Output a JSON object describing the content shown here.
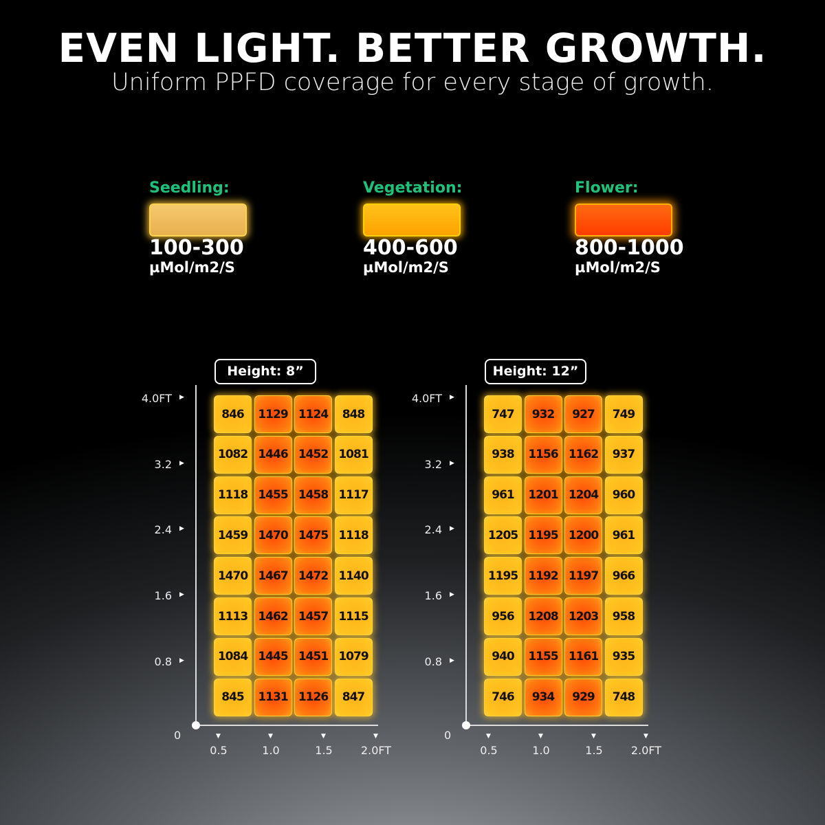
{
  "header": {
    "title": "EVEN LIGHT. BETTER GROWTH.",
    "subtitle": "Uniform PPFD coverage for every stage of growth."
  },
  "legend": [
    {
      "label": "Seedling:",
      "range": "100-300",
      "unit": "µMol/m2/S"
    },
    {
      "label": "Vegetation:",
      "range": "400-600",
      "unit": "µMol/m2/S"
    },
    {
      "label": "Flower:",
      "range": "800-1000",
      "unit": "µMol/m2/S"
    }
  ],
  "maps": [
    {
      "height": "Height: 8”",
      "y_labels": [
        "4.0FT",
        "3.2",
        "2.4",
        "1.6",
        "0.8"
      ],
      "origin": "0",
      "x_labels": [
        "0.5",
        "1.0",
        "1.5",
        "2.0FT"
      ],
      "rows": [
        [
          846,
          1129,
          1124,
          848
        ],
        [
          1082,
          1446,
          1452,
          1081
        ],
        [
          1118,
          1455,
          1458,
          1117
        ],
        [
          1459,
          1470,
          1475,
          1118
        ],
        [
          1470,
          1467,
          1472,
          1140
        ],
        [
          1113,
          1462,
          1457,
          1115
        ],
        [
          1084,
          1445,
          1451,
          1079
        ],
        [
          845,
          1131,
          1126,
          847
        ]
      ]
    },
    {
      "height": "Height: 12”",
      "y_labels": [
        "4.0FT",
        "3.2",
        "2.4",
        "1.6",
        "0.8"
      ],
      "origin": "0",
      "x_labels": [
        "0.5",
        "1.0",
        "1.5",
        "2.0FT"
      ],
      "rows": [
        [
          747,
          932,
          927,
          749
        ],
        [
          938,
          1156,
          1162,
          937
        ],
        [
          961,
          1201,
          1204,
          960
        ],
        [
          1205,
          1195,
          1200,
          961
        ],
        [
          1195,
          1192,
          1197,
          966
        ],
        [
          956,
          1208,
          1203,
          958
        ],
        [
          940,
          1155,
          1161,
          935
        ],
        [
          746,
          934,
          929,
          748
        ]
      ]
    }
  ]
}
